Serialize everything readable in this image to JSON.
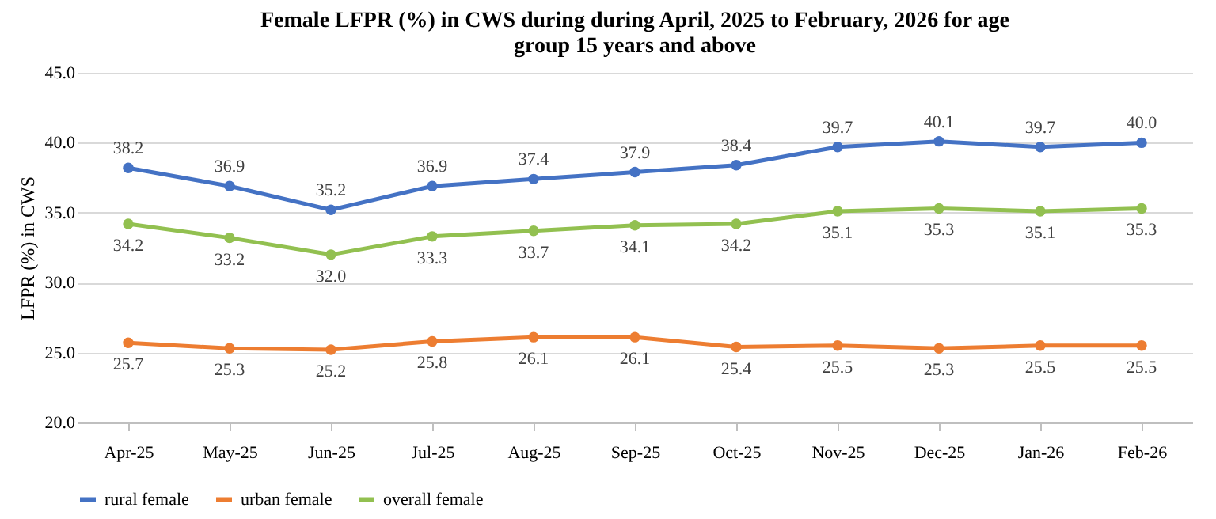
{
  "chart_data": {
    "type": "line",
    "title": "Female LFPR (%) in CWS during during April, 2025 to February, 2026 for age group 15 years and above",
    "ylabel": "LFPR (%) in CWS",
    "categories": [
      "Apr-25",
      "May-25",
      "Jun-25",
      "Jul-25",
      "Aug-25",
      "Sep-25",
      "Oct-25",
      "Nov-25",
      "Dec-25",
      "Jan-26",
      "Feb-26"
    ],
    "series": [
      {
        "name": "rural female",
        "color": "#4472c4",
        "values": [
          38.2,
          36.9,
          35.2,
          36.9,
          37.4,
          37.9,
          38.4,
          39.7,
          40.1,
          39.7,
          40.0
        ],
        "value_labels": [
          "38.2",
          "36.9",
          "35.2",
          "36.9",
          "37.4",
          "37.9",
          "38.4",
          "39.7",
          "40.1",
          "39.7",
          "40.0"
        ]
      },
      {
        "name": "urban female",
        "color": "#ed7d31",
        "values": [
          25.7,
          25.3,
          25.2,
          25.8,
          26.1,
          26.1,
          25.4,
          25.5,
          25.3,
          25.5,
          25.5
        ],
        "value_labels": [
          "25.7",
          "25.3",
          "25.2",
          "25.8",
          "26.1",
          "26.1",
          "25.4",
          "25.5",
          "25.3",
          "25.5",
          "25.5"
        ]
      },
      {
        "name": "overall female",
        "color": "#92c050",
        "values": [
          34.2,
          33.2,
          32.0,
          33.3,
          33.7,
          34.1,
          34.2,
          35.1,
          35.3,
          35.1,
          35.3
        ],
        "value_labels": [
          "34.2",
          "33.2",
          "32.0",
          "33.3",
          "33.7",
          "34.1",
          "34.2",
          "35.1",
          "35.3",
          "35.1",
          "35.3"
        ]
      }
    ],
    "ylim": [
      20,
      45
    ],
    "yticks": [
      {
        "value": 20,
        "label": "20.0"
      },
      {
        "value": 25,
        "label": "25.0"
      },
      {
        "value": 30,
        "label": "30.0"
      },
      {
        "value": 35,
        "label": "35.0"
      },
      {
        "value": 40,
        "label": "40.0"
      },
      {
        "value": 45,
        "label": "45.0"
      }
    ],
    "grid": "y",
    "legend": "bottom",
    "marker": "circle",
    "line_style": "solid"
  }
}
